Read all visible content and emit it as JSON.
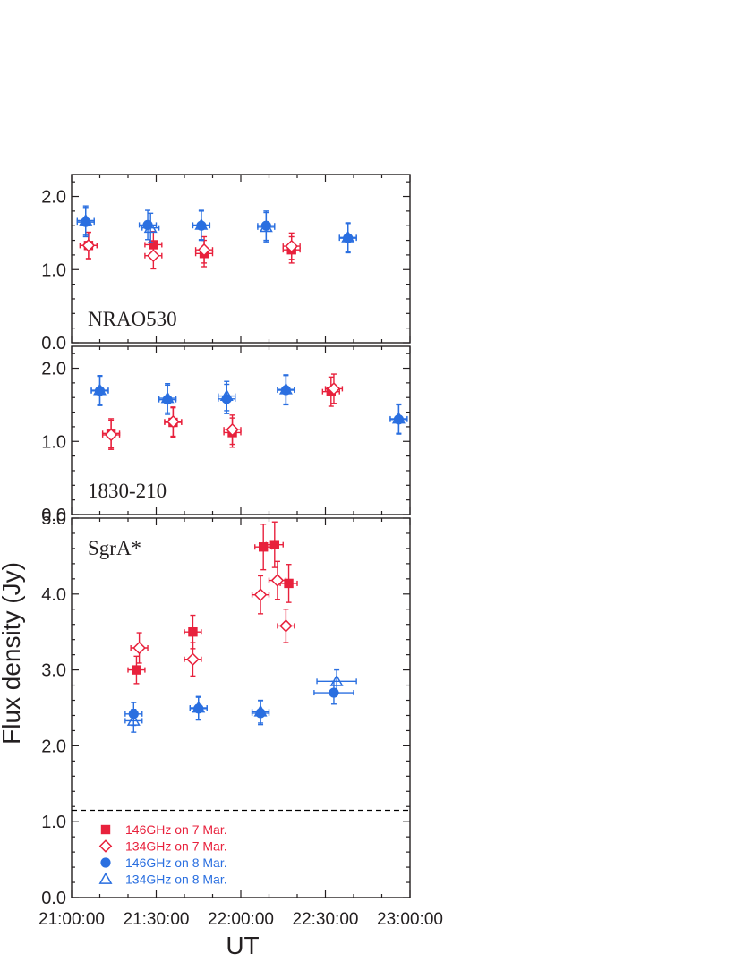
{
  "colors": {
    "red": "#e8213c",
    "blue": "#2a6fe0",
    "frame": "#231f20"
  },
  "chart_data": {
    "type": "scatter",
    "xlabel": "UT",
    "ylabel": "Flux density (Jy)",
    "x_ticks": [
      "21:00:00",
      "21:30:00",
      "22:00:00",
      "22:30:00",
      "23:00:00"
    ],
    "xlim_minutes_after_21h": [
      0,
      120
    ],
    "panels": [
      {
        "label": "NRAO530",
        "ylim": [
          0,
          2.3
        ],
        "y_ticks": [
          "0.0",
          "1.0",
          "2.0"
        ],
        "series": [
          {
            "name": "146GHz on 7 Mar.",
            "marker": "filled-square",
            "color": "red",
            "points": [
              {
                "x": 6,
                "y": 1.33,
                "xerr": 3,
                "yerr": 0.18
              },
              {
                "x": 29,
                "y": 1.34,
                "xerr": 3,
                "yerr": 0.18
              },
              {
                "x": 47,
                "y": 1.22,
                "xerr": 3,
                "yerr": 0.18
              },
              {
                "x": 78,
                "y": 1.27,
                "xerr": 3,
                "yerr": 0.18
              }
            ]
          },
          {
            "name": "134GHz on 7 Mar.",
            "marker": "open-diamond",
            "color": "red",
            "points": [
              {
                "x": 6,
                "y": 1.33,
                "xerr": 3,
                "yerr": 0.18
              },
              {
                "x": 29,
                "y": 1.19,
                "xerr": 3,
                "yerr": 0.18
              },
              {
                "x": 47,
                "y": 1.27,
                "xerr": 3,
                "yerr": 0.18
              },
              {
                "x": 78,
                "y": 1.32,
                "xerr": 3,
                "yerr": 0.18
              }
            ]
          },
          {
            "name": "146GHz on 8 Mar.",
            "marker": "filled-circle",
            "color": "blue",
            "points": [
              {
                "x": 5,
                "y": 1.65,
                "xerr": 3,
                "yerr": 0.2
              },
              {
                "x": 27,
                "y": 1.61,
                "xerr": 3,
                "yerr": 0.2
              },
              {
                "x": 46,
                "y": 1.6,
                "xerr": 3,
                "yerr": 0.2
              },
              {
                "x": 69,
                "y": 1.6,
                "xerr": 3,
                "yerr": 0.2
              },
              {
                "x": 98,
                "y": 1.43,
                "xerr": 3,
                "yerr": 0.2
              }
            ]
          },
          {
            "name": "134GHz on 8 Mar.",
            "marker": "open-triangle",
            "color": "blue",
            "points": [
              {
                "x": 5,
                "y": 1.67,
                "xerr": 3,
                "yerr": 0.2
              },
              {
                "x": 28,
                "y": 1.57,
                "xerr": 3,
                "yerr": 0.2
              },
              {
                "x": 46,
                "y": 1.61,
                "xerr": 3,
                "yerr": 0.2
              },
              {
                "x": 69,
                "y": 1.58,
                "xerr": 3,
                "yerr": 0.2
              },
              {
                "x": 98,
                "y": 1.44,
                "xerr": 3,
                "yerr": 0.2
              }
            ]
          }
        ]
      },
      {
        "label": "1830-210",
        "ylim": [
          0,
          2.3
        ],
        "y_ticks": [
          "0.0",
          "1.0",
          "2.0"
        ],
        "series": [
          {
            "name": "146GHz on 7 Mar.",
            "marker": "filled-square",
            "color": "red",
            "points": [
              {
                "x": 14,
                "y": 1.11,
                "xerr": 3,
                "yerr": 0.2
              },
              {
                "x": 36,
                "y": 1.26,
                "xerr": 3,
                "yerr": 0.2
              },
              {
                "x": 57,
                "y": 1.12,
                "xerr": 3,
                "yerr": 0.2
              },
              {
                "x": 92,
                "y": 1.68,
                "xerr": 3,
                "yerr": 0.2
              }
            ]
          },
          {
            "name": "134GHz on 7 Mar.",
            "marker": "open-diamond",
            "color": "red",
            "points": [
              {
                "x": 14,
                "y": 1.09,
                "xerr": 3,
                "yerr": 0.2
              },
              {
                "x": 36,
                "y": 1.27,
                "xerr": 3,
                "yerr": 0.2
              },
              {
                "x": 57,
                "y": 1.16,
                "xerr": 3,
                "yerr": 0.2
              },
              {
                "x": 93,
                "y": 1.72,
                "xerr": 3,
                "yerr": 0.2
              }
            ]
          },
          {
            "name": "146GHz on 8 Mar.",
            "marker": "filled-circle",
            "color": "blue",
            "points": [
              {
                "x": 10,
                "y": 1.69,
                "xerr": 3,
                "yerr": 0.2
              },
              {
                "x": 34,
                "y": 1.57,
                "xerr": 3,
                "yerr": 0.2
              },
              {
                "x": 55,
                "y": 1.58,
                "xerr": 3,
                "yerr": 0.2
              },
              {
                "x": 76,
                "y": 1.7,
                "xerr": 3,
                "yerr": 0.2
              },
              {
                "x": 116,
                "y": 1.3,
                "xerr": 3,
                "yerr": 0.2
              }
            ]
          },
          {
            "name": "134GHz on 8 Mar.",
            "marker": "open-triangle",
            "color": "blue",
            "points": [
              {
                "x": 10,
                "y": 1.7,
                "xerr": 3,
                "yerr": 0.2
              },
              {
                "x": 34,
                "y": 1.59,
                "xerr": 3,
                "yerr": 0.2
              },
              {
                "x": 55,
                "y": 1.62,
                "xerr": 3,
                "yerr": 0.2
              },
              {
                "x": 76,
                "y": 1.71,
                "xerr": 3,
                "yerr": 0.2
              },
              {
                "x": 116,
                "y": 1.31,
                "xerr": 3,
                "yerr": 0.2
              }
            ]
          }
        ]
      },
      {
        "label": "SgrA*",
        "ylim": [
          0,
          5.0
        ],
        "y_ticks": [
          "0.0",
          "1.0",
          "2.0",
          "3.0",
          "4.0",
          "5.0"
        ],
        "reference_line": {
          "y": 1.15,
          "style": "dashed"
        },
        "series": [
          {
            "name": "146GHz on 7 Mar.",
            "marker": "filled-square",
            "color": "red",
            "points": [
              {
                "x": 23,
                "y": 3.0,
                "xerr": 3,
                "yerr": 0.18
              },
              {
                "x": 43,
                "y": 3.5,
                "xerr": 3,
                "yerr": 0.22
              },
              {
                "x": 68,
                "y": 4.62,
                "xerr": 3,
                "yerr": 0.3
              },
              {
                "x": 72,
                "y": 4.65,
                "xerr": 3,
                "yerr": 0.3
              },
              {
                "x": 77,
                "y": 4.14,
                "xerr": 3,
                "yerr": 0.25
              }
            ]
          },
          {
            "name": "134GHz on 7 Mar.",
            "marker": "open-diamond",
            "color": "red",
            "points": [
              {
                "x": 24,
                "y": 3.29,
                "xerr": 3,
                "yerr": 0.2
              },
              {
                "x": 43,
                "y": 3.14,
                "xerr": 3,
                "yerr": 0.22
              },
              {
                "x": 67,
                "y": 3.99,
                "xerr": 3,
                "yerr": 0.25
              },
              {
                "x": 73,
                "y": 4.18,
                "xerr": 3,
                "yerr": 0.25
              },
              {
                "x": 76,
                "y": 3.58,
                "xerr": 3,
                "yerr": 0.22
              }
            ]
          },
          {
            "name": "146GHz on 8 Mar.",
            "marker": "filled-circle",
            "color": "blue",
            "points": [
              {
                "x": 22,
                "y": 2.42,
                "xerr": 3,
                "yerr": 0.15
              },
              {
                "x": 45,
                "y": 2.49,
                "xerr": 3,
                "yerr": 0.15
              },
              {
                "x": 67,
                "y": 2.43,
                "xerr": 3,
                "yerr": 0.15
              },
              {
                "x": 93,
                "y": 2.7,
                "xerr": 7,
                "yerr": 0.15
              }
            ]
          },
          {
            "name": "134GHz on 8 Mar.",
            "marker": "open-triangle",
            "color": "blue",
            "points": [
              {
                "x": 22,
                "y": 2.33,
                "xerr": 3,
                "yerr": 0.15
              },
              {
                "x": 45,
                "y": 2.5,
                "xerr": 3,
                "yerr": 0.15
              },
              {
                "x": 67,
                "y": 2.45,
                "xerr": 3,
                "yerr": 0.15
              },
              {
                "x": 94,
                "y": 2.85,
                "xerr": 7,
                "yerr": 0.15
              }
            ]
          }
        ]
      }
    ],
    "legend": {
      "placement": "bottom-left of SgrA* panel",
      "entries": [
        {
          "label": "146GHz on 7 Mar.",
          "marker": "filled-square",
          "color": "red"
        },
        {
          "label": "134GHz on 7 Mar.",
          "marker": "open-diamond",
          "color": "red"
        },
        {
          "label": "146GHz on 8 Mar.",
          "marker": "filled-circle",
          "color": "blue"
        },
        {
          "label": "134GHz on 8 Mar.",
          "marker": "open-triangle",
          "color": "blue"
        }
      ]
    }
  }
}
